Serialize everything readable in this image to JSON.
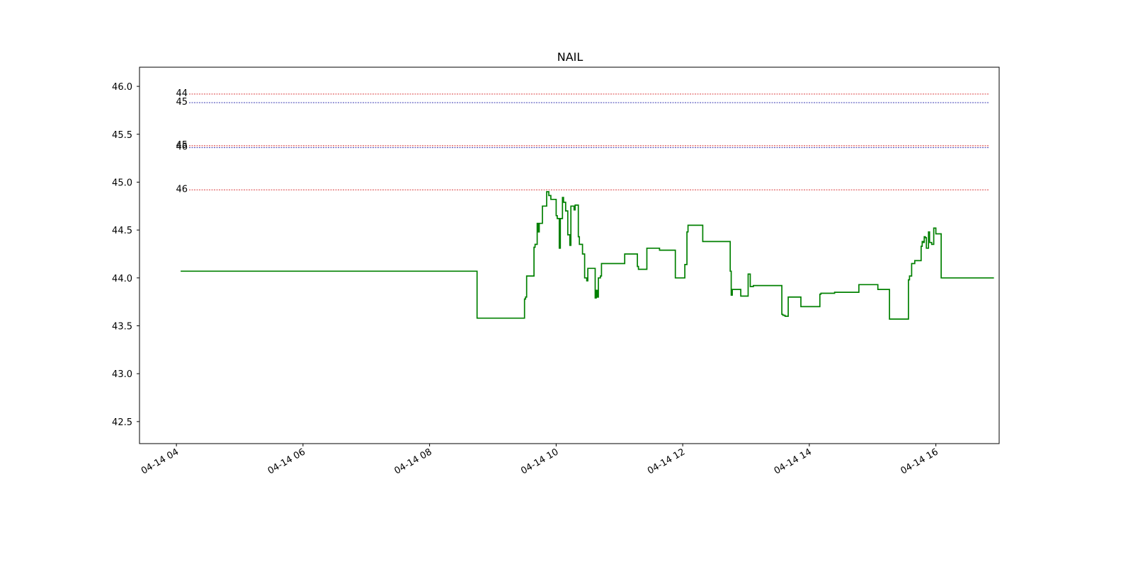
{
  "chart_data": {
    "type": "line",
    "title": "NAIL",
    "xlabel": "",
    "ylabel": "",
    "grid": false,
    "xlim": [
      "04-14 03:25",
      "04-14 17:00"
    ],
    "ylim": [
      42.27,
      46.2
    ],
    "x_ticks": [
      "04-14 04",
      "04-14 06",
      "04-14 08",
      "04-14 10",
      "04-14 12",
      "04-14 14",
      "04-14 16"
    ],
    "y_ticks": [
      "42.5",
      "43.0",
      "43.5",
      "44.0",
      "44.5",
      "45.0",
      "45.5",
      "46.0"
    ],
    "levels": [
      {
        "label": "44",
        "y": 45.92,
        "color": "#d62728"
      },
      {
        "label": "45",
        "y": 45.83,
        "color": "#1f1fa8"
      },
      {
        "label": "45",
        "y": 45.38,
        "color": "#d62728"
      },
      {
        "label": "46",
        "y": 45.36,
        "color": "#1f1fa8"
      },
      {
        "label": "46",
        "y": 44.92,
        "color": "#d62728"
      }
    ],
    "series": [
      {
        "color": "#008000",
        "step": true,
        "x": [
          "04:04",
          "08:44",
          "08:45",
          "09:24",
          "09:30",
          "09:31",
          "09:32",
          "09:38",
          "09:39",
          "09:40",
          "09:42",
          "09:43",
          "09:44",
          "09:45",
          "09:47",
          "09:51",
          "09:52",
          "09:53",
          "09:55",
          "09:56",
          "10:00",
          "10:01",
          "10:03",
          "10:04",
          "10:06",
          "10:07",
          "10:09",
          "10:11",
          "10:13",
          "10:14",
          "10:17",
          "10:18",
          "10:19",
          "10:21",
          "10:22",
          "10:25",
          "10:26",
          "10:27",
          "10:29",
          "10:30",
          "10:34",
          "10:37",
          "10:38",
          "10:39",
          "10:40",
          "10:42",
          "10:43",
          "10:44",
          "11:05",
          "11:06",
          "11:17",
          "11:18",
          "11:25",
          "11:26",
          "11:38",
          "11:39",
          "11:53",
          "11:54",
          "12:02",
          "12:03",
          "12:04",
          "12:05",
          "12:18",
          "12:19",
          "12:44",
          "12:45",
          "12:46",
          "12:47",
          "12:48",
          "12:49",
          "12:55",
          "12:56",
          "13:02",
          "13:03",
          "13:04",
          "13:05",
          "13:07",
          "13:08",
          "13:34",
          "13:35",
          "13:37",
          "13:38",
          "13:40",
          "13:41",
          "13:52",
          "13:53",
          "14:10",
          "14:11",
          "14:24",
          "14:25",
          "14:30",
          "14:31",
          "14:46",
          "14:47",
          "15:04",
          "15:05",
          "15:15",
          "15:16",
          "15:31",
          "15:32",
          "15:34",
          "15:35",
          "15:36",
          "15:37",
          "15:39",
          "15:40",
          "15:46",
          "15:47",
          "15:48",
          "15:49",
          "15:50",
          "15:51",
          "15:53",
          "15:54",
          "15:56",
          "15:58",
          "16:00",
          "16:01",
          "16:04",
          "16:05",
          "16:55"
        ],
        "y": [
          44.07,
          44.07,
          43.58,
          43.58,
          43.78,
          43.8,
          44.02,
          44.02,
          44.32,
          44.35,
          44.57,
          44.48,
          44.57,
          44.57,
          44.75,
          44.9,
          44.9,
          44.86,
          44.82,
          44.82,
          44.65,
          44.62,
          44.31,
          44.62,
          44.84,
          44.79,
          44.7,
          44.45,
          44.34,
          44.75,
          44.71,
          44.76,
          44.76,
          44.43,
          44.35,
          44.25,
          44.25,
          44.0,
          43.97,
          44.1,
          44.1,
          43.79,
          43.87,
          43.8,
          44.0,
          44.02,
          44.15,
          44.15,
          44.25,
          44.25,
          44.12,
          44.09,
          44.09,
          44.31,
          44.29,
          44.29,
          44.0,
          44.0,
          44.14,
          44.14,
          44.48,
          44.55,
          44.55,
          44.38,
          44.38,
          44.07,
          43.82,
          43.88,
          43.88,
          43.88,
          43.81,
          43.81,
          44.04,
          44.04,
          43.91,
          43.91,
          43.92,
          43.92,
          43.62,
          43.61,
          43.6,
          43.6,
          43.8,
          43.8,
          43.7,
          43.7,
          43.83,
          43.84,
          43.85,
          43.85,
          43.85,
          43.85,
          43.85,
          43.93,
          43.93,
          43.88,
          43.88,
          43.57,
          43.57,
          43.57,
          43.98,
          44.02,
          44.02,
          44.15,
          44.15,
          44.18,
          44.33,
          44.38,
          44.37,
          44.43,
          44.42,
          44.31,
          44.48,
          44.37,
          44.35,
          44.52,
          44.46,
          44.46,
          44.46,
          44.0,
          44.0
        ]
      }
    ]
  }
}
